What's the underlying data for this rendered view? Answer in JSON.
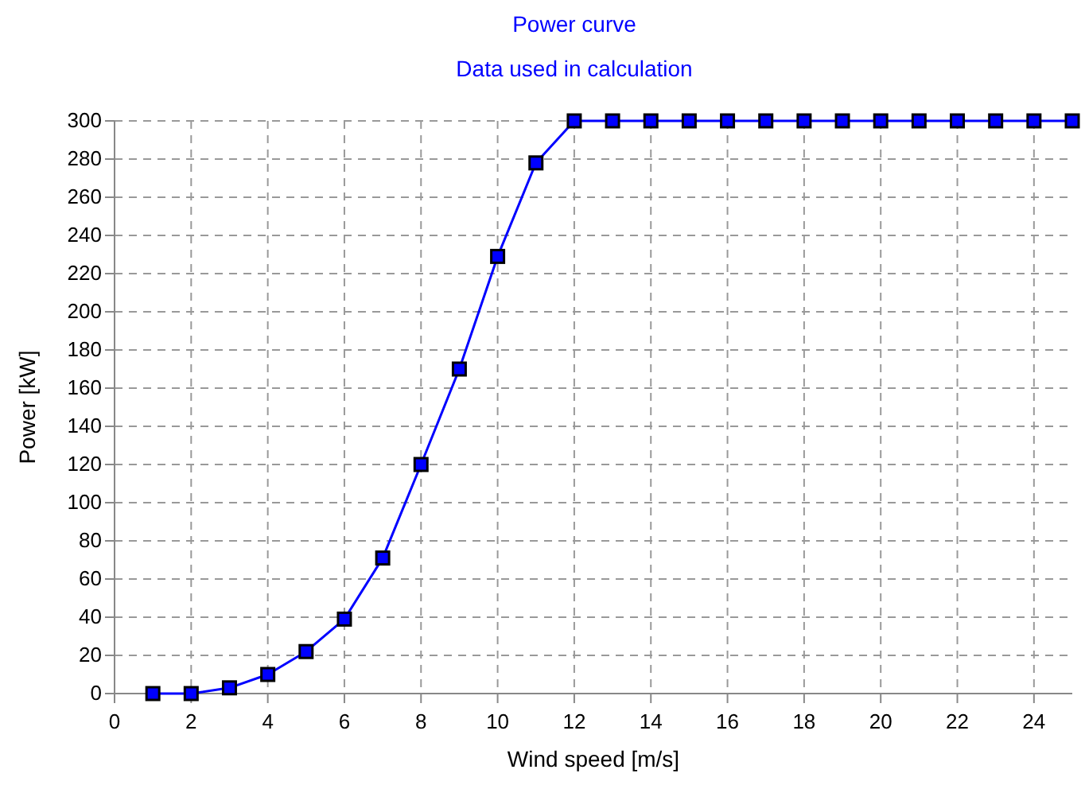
{
  "chart_data": {
    "type": "line",
    "title": "Power curve",
    "subtitle": "Data used in calculation",
    "xlabel": "Wind speed [m/s]",
    "ylabel": "Power [kW]",
    "x": [
      1,
      2,
      3,
      4,
      5,
      6,
      7,
      8,
      9,
      10,
      11,
      12,
      13,
      14,
      15,
      16,
      17,
      18,
      19,
      20,
      21,
      22,
      23,
      24,
      25
    ],
    "series": [
      {
        "color": "#0000ff",
        "values": [
          0,
          0,
          3,
          10,
          22,
          39,
          71,
          120,
          170,
          229,
          278,
          300,
          300,
          300,
          300,
          300,
          300,
          300,
          300,
          300,
          300,
          300,
          300,
          300,
          300
        ]
      }
    ],
    "xlim": [
      0,
      25
    ],
    "ylim": [
      0,
      300
    ],
    "xticks": [
      0,
      2,
      4,
      6,
      8,
      10,
      12,
      14,
      16,
      18,
      20,
      22,
      24
    ],
    "yticks": [
      0,
      20,
      40,
      60,
      80,
      100,
      120,
      140,
      160,
      180,
      200,
      220,
      240,
      260,
      280,
      300
    ],
    "grid": true,
    "marker": "square",
    "line_style": "solid"
  }
}
